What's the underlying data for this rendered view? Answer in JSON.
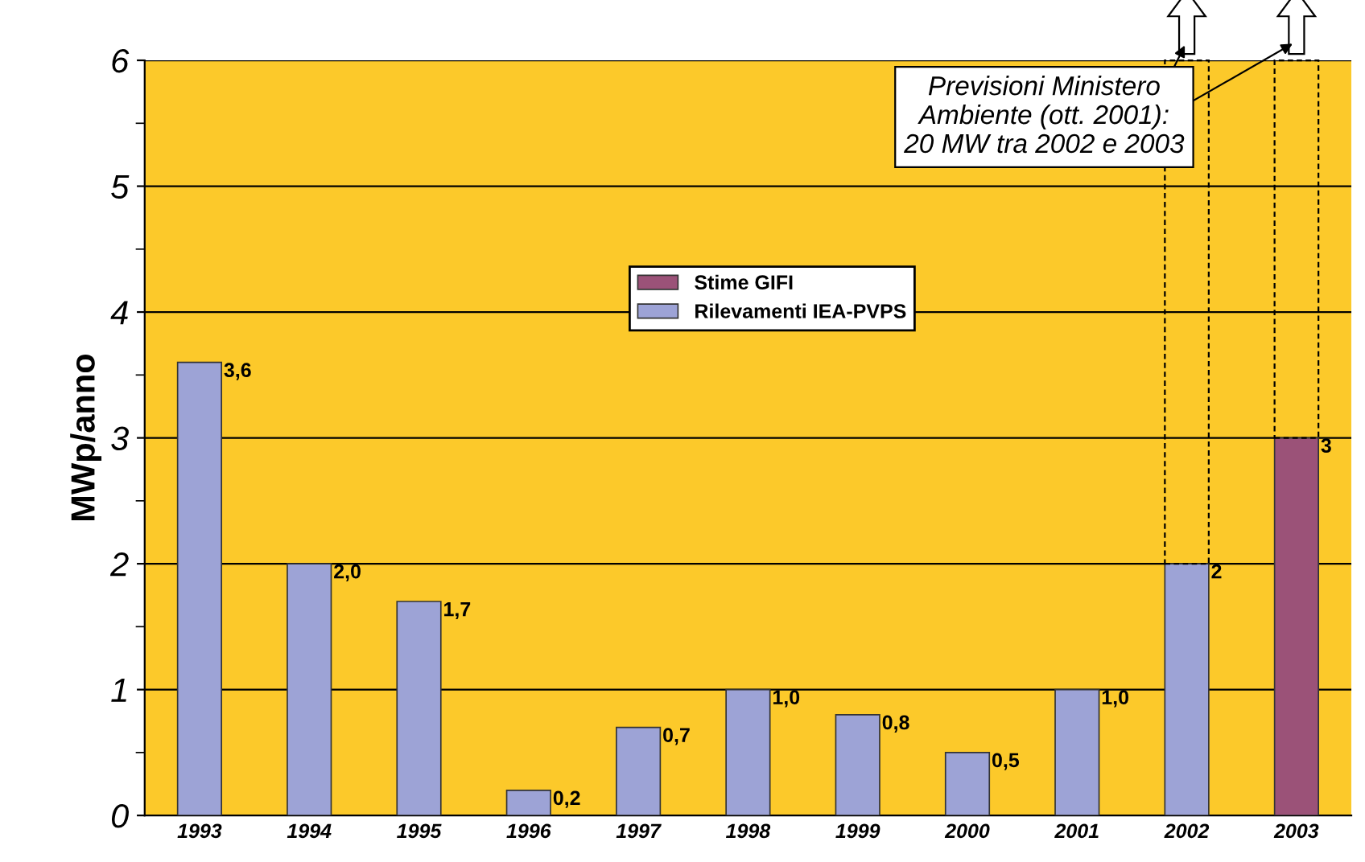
{
  "chart_data": {
    "type": "bar",
    "ylabel": "MWp/anno",
    "categories": [
      "1993",
      "1994",
      "1995",
      "1996",
      "1997",
      "1998",
      "1999",
      "2000",
      "2001",
      "2002",
      "2003"
    ],
    "series": [
      {
        "name": "Stime GIFI",
        "color": "#9b5278",
        "values": [
          null,
          null,
          null,
          null,
          null,
          null,
          null,
          null,
          null,
          null,
          3
        ],
        "value_labels": [
          null,
          null,
          null,
          null,
          null,
          null,
          null,
          null,
          null,
          null,
          "3"
        ]
      },
      {
        "name": "Rilevamenti IEA-PVPS",
        "color": "#9da3d6",
        "values": [
          3.6,
          2.0,
          1.7,
          0.2,
          0.7,
          1.0,
          0.8,
          0.5,
          1.0,
          2,
          null
        ],
        "value_labels": [
          "3,6",
          "2,0",
          "1,7",
          "0,2",
          "0,7",
          "1,0",
          "0,8",
          "0,5",
          "1,0",
          "2",
          null
        ]
      }
    ],
    "ylim": [
      0,
      6
    ],
    "yticks": [
      0,
      {
        "value": 0.5,
        "label": null
      },
      1,
      {
        "value": 1.5,
        "label": null
      },
      2,
      {
        "value": 2.5,
        "label": null
      },
      3,
      {
        "value": 3.5,
        "label": null
      },
      4,
      {
        "value": 4.5,
        "label": null
      },
      5,
      {
        "value": 5.5,
        "label": null
      },
      6
    ],
    "grid": "y",
    "legend": "top center",
    "annotations": [
      "Previsioni Ministero\nAmbiente (ott. 2001):\n20 MW tra 2002 e 2003"
    ]
  }
}
